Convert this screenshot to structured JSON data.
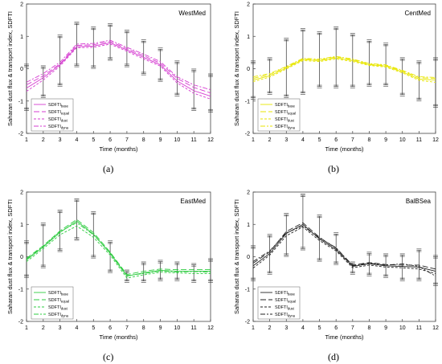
{
  "figure": {
    "captions": [
      "(a)",
      "(b)",
      "(c)",
      "(d)"
    ]
  },
  "chart_data": [
    {
      "type": "line",
      "title": "WestMed",
      "xlabel": "Time (months)",
      "ylabel": "Saharan dust flux & transport index, SDFTI",
      "xlim": [
        1,
        12
      ],
      "ylim": [
        -2,
        2
      ],
      "x": [
        1,
        2,
        3,
        4,
        5,
        6,
        7,
        8,
        9,
        10,
        11,
        12
      ],
      "x_ticks": [
        "1",
        "2",
        "3",
        "4",
        "5",
        "6",
        "7",
        "8",
        "9",
        "10",
        "11",
        "12"
      ],
      "y_ticks": [
        "-2",
        "-1",
        "0",
        "1",
        "2"
      ],
      "legend_position": "lower-left",
      "color": "#d63cd1",
      "series": [
        {
          "name": "SDFTIbase",
          "label_main": "SDFTI",
          "label_sub": "base",
          "dash": "",
          "values": [
            -0.6,
            -0.28,
            0.12,
            0.68,
            0.7,
            0.8,
            0.58,
            0.35,
            0.12,
            -0.38,
            -0.68,
            -0.85
          ]
        },
        {
          "name": "SDFTIequal",
          "label_main": "SDFTI",
          "label_sub": "equal",
          "dash": "7,3",
          "values": [
            -0.5,
            -0.22,
            0.15,
            0.72,
            0.74,
            0.84,
            0.62,
            0.4,
            0.17,
            -0.3,
            -0.58,
            -0.75
          ]
        },
        {
          "name": "SDFTIdust",
          "label_main": "SDFTI",
          "label_sub": "dust",
          "dash": "3,2",
          "values": [
            -0.7,
            -0.35,
            0.08,
            0.65,
            0.66,
            0.76,
            0.54,
            0.3,
            0.08,
            -0.44,
            -0.76,
            -0.94
          ]
        },
        {
          "name": "SDFTIdyna",
          "label_main": "SDFTI",
          "label_sub": "dyna",
          "dash": "6,2,2,2",
          "values": [
            -0.42,
            -0.15,
            0.2,
            0.76,
            0.78,
            0.88,
            0.66,
            0.45,
            0.22,
            -0.25,
            -0.5,
            -0.65
          ]
        }
      ],
      "error_bars": [
        {
          "x": 1,
          "low": -1.25,
          "high": 0.1
        },
        {
          "x": 2,
          "low": -0.85,
          "high": 0.05
        },
        {
          "x": 3,
          "low": -0.5,
          "high": 1.0
        },
        {
          "x": 4,
          "low": 0.1,
          "high": 1.4
        },
        {
          "x": 5,
          "low": 0.05,
          "high": 1.25
        },
        {
          "x": 6,
          "low": 0.3,
          "high": 1.35
        },
        {
          "x": 7,
          "low": 0.1,
          "high": 1.15
        },
        {
          "x": 8,
          "low": -0.15,
          "high": 0.85
        },
        {
          "x": 9,
          "low": -0.35,
          "high": 0.6
        },
        {
          "x": 10,
          "low": -0.8,
          "high": 0.2
        },
        {
          "x": 11,
          "low": -1.25,
          "high": -0.05
        },
        {
          "x": 12,
          "low": -1.3,
          "high": -0.2
        }
      ]
    },
    {
      "type": "line",
      "title": "CentMed",
      "xlabel": "Time (months)",
      "ylabel": "Saharan dust flux & transport index, SDFTI",
      "xlim": [
        1,
        12
      ],
      "ylim": [
        -2,
        2
      ],
      "x": [
        1,
        2,
        3,
        4,
        5,
        6,
        7,
        8,
        9,
        10,
        11,
        12
      ],
      "x_ticks": [
        "1",
        "2",
        "3",
        "4",
        "5",
        "6",
        "7",
        "8",
        "9",
        "10",
        "11",
        "12"
      ],
      "y_ticks": [
        "-2",
        "-1",
        "0",
        "1",
        "2"
      ],
      "legend_position": "lower-left",
      "color": "#e8e600",
      "series": [
        {
          "name": "SDFTIbase",
          "label_main": "SDFTI",
          "label_sub": "base",
          "dash": "",
          "values": [
            -0.35,
            -0.22,
            0.02,
            0.28,
            0.25,
            0.33,
            0.25,
            0.12,
            0.08,
            -0.1,
            -0.32,
            -0.35
          ]
        },
        {
          "name": "SDFTIequal",
          "label_main": "SDFTI",
          "label_sub": "equal",
          "dash": "7,3",
          "values": [
            -0.3,
            -0.18,
            0.05,
            0.3,
            0.27,
            0.36,
            0.28,
            0.14,
            0.1,
            -0.07,
            -0.28,
            -0.3
          ]
        },
        {
          "name": "SDFTIdust",
          "label_main": "SDFTI",
          "label_sub": "dust",
          "dash": "3,2",
          "values": [
            -0.4,
            -0.26,
            -0.01,
            0.25,
            0.22,
            0.3,
            0.22,
            0.1,
            0.05,
            -0.13,
            -0.36,
            -0.42
          ]
        },
        {
          "name": "SDFTIdyna",
          "label_main": "SDFTI",
          "label_sub": "dyna",
          "dash": "6,2,2,2",
          "values": [
            -0.25,
            -0.15,
            0.07,
            0.32,
            0.3,
            0.38,
            0.3,
            0.16,
            0.12,
            -0.05,
            -0.25,
            -0.27
          ]
        }
      ],
      "error_bars": [
        {
          "x": 1,
          "low": -0.9,
          "high": 0.2
        },
        {
          "x": 2,
          "low": -0.75,
          "high": 0.3
        },
        {
          "x": 3,
          "low": -0.85,
          "high": 0.9
        },
        {
          "x": 4,
          "low": -0.75,
          "high": 1.2
        },
        {
          "x": 5,
          "low": -0.55,
          "high": 1.1
        },
        {
          "x": 6,
          "low": -0.55,
          "high": 1.25
        },
        {
          "x": 7,
          "low": -0.55,
          "high": 1.05
        },
        {
          "x": 8,
          "low": -0.5,
          "high": 0.85
        },
        {
          "x": 9,
          "low": -0.5,
          "high": 0.75
        },
        {
          "x": 10,
          "low": -0.8,
          "high": 0.3
        },
        {
          "x": 11,
          "low": -0.95,
          "high": 0.2
        },
        {
          "x": 12,
          "low": -1.15,
          "high": 0.3
        }
      ]
    },
    {
      "type": "line",
      "title": "EastMed",
      "xlabel": "Time (months)",
      "ylabel": "Saharan dust flux & transport index, SDFTI",
      "xlim": [
        1,
        12
      ],
      "ylim": [
        -2,
        2
      ],
      "x": [
        1,
        2,
        3,
        4,
        5,
        6,
        7,
        8,
        9,
        10,
        11,
        12
      ],
      "x_ticks": [
        "1",
        "2",
        "3",
        "4",
        "5",
        "6",
        "7",
        "8",
        "9",
        "10",
        "11",
        "12"
      ],
      "y_ticks": [
        "-2",
        "-1",
        "0",
        "1",
        "2"
      ],
      "legend_position": "lower-left",
      "color": "#2ecc40",
      "series": [
        {
          "name": "SDFTIbase",
          "label_main": "SDFTI",
          "label_sub": "base",
          "dash": "",
          "values": [
            -0.1,
            0.3,
            0.75,
            1.1,
            0.7,
            0.1,
            -0.6,
            -0.5,
            -0.42,
            -0.45,
            -0.45,
            -0.45
          ]
        },
        {
          "name": "SDFTIequal",
          "label_main": "SDFTI",
          "label_sub": "equal",
          "dash": "7,3",
          "values": [
            -0.05,
            0.34,
            0.8,
            1.15,
            0.75,
            0.14,
            -0.55,
            -0.45,
            -0.38,
            -0.4,
            -0.4,
            -0.4
          ]
        },
        {
          "name": "SDFTIdust",
          "label_main": "SDFTI",
          "label_sub": "dust",
          "dash": "3,2",
          "values": [
            -0.15,
            0.25,
            0.68,
            0.95,
            0.6,
            0.05,
            -0.66,
            -0.56,
            -0.48,
            -0.5,
            -0.52,
            -0.52
          ]
        },
        {
          "name": "SDFTIdyna",
          "label_main": "SDFTI",
          "label_sub": "dyna",
          "dash": "6,2,2,2",
          "values": [
            -0.08,
            0.32,
            0.78,
            1.05,
            0.68,
            0.12,
            -0.58,
            -0.52,
            -0.44,
            -0.47,
            -0.46,
            -0.48
          ]
        }
      ],
      "error_bars": [
        {
          "x": 1,
          "low": -0.6,
          "high": 0.45
        },
        {
          "x": 2,
          "low": -0.3,
          "high": 1.0
        },
        {
          "x": 3,
          "low": 0.2,
          "high": 1.4
        },
        {
          "x": 4,
          "low": 0.55,
          "high": 1.75
        },
        {
          "x": 5,
          "low": 0.0,
          "high": 1.35
        },
        {
          "x": 6,
          "low": -0.45,
          "high": 0.45
        },
        {
          "x": 7,
          "low": -0.75,
          "high": -0.45
        },
        {
          "x": 8,
          "low": -0.75,
          "high": -0.2
        },
        {
          "x": 9,
          "low": -0.7,
          "high": -0.15
        },
        {
          "x": 10,
          "low": -0.7,
          "high": -0.2
        },
        {
          "x": 11,
          "low": -0.75,
          "high": -0.25
        },
        {
          "x": 12,
          "low": -0.75,
          "high": -0.1
        }
      ]
    },
    {
      "type": "line",
      "title": "BalBSea",
      "xlabel": "Time (months)",
      "ylabel": "Saharan dust flux & transport index, SDFTI",
      "xlim": [
        1,
        12
      ],
      "ylim": [
        -2,
        2
      ],
      "x": [
        1,
        2,
        3,
        4,
        5,
        6,
        7,
        8,
        9,
        10,
        11,
        12
      ],
      "x_ticks": [
        "1",
        "2",
        "3",
        "4",
        "5",
        "6",
        "7",
        "8",
        "9",
        "10",
        "11",
        "12"
      ],
      "y_ticks": [
        "-2",
        "-1",
        "0",
        "1",
        "2"
      ],
      "legend_position": "lower-left",
      "color": "#222222",
      "series": [
        {
          "name": "SDFTIbase",
          "label_main": "SDFTI",
          "label_sub": "base",
          "dash": "",
          "values": [
            -0.28,
            0.1,
            0.72,
            1.0,
            0.55,
            0.22,
            -0.3,
            -0.22,
            -0.28,
            -0.3,
            -0.32,
            -0.45
          ]
        },
        {
          "name": "SDFTIequal",
          "label_main": "SDFTI",
          "label_sub": "equal",
          "dash": "7,3",
          "values": [
            -0.2,
            0.15,
            0.78,
            1.05,
            0.6,
            0.26,
            -0.26,
            -0.18,
            -0.24,
            -0.26,
            -0.26,
            -0.38
          ]
        },
        {
          "name": "SDFTIdust",
          "label_main": "SDFTI",
          "label_sub": "dust",
          "dash": "3,2",
          "values": [
            -0.35,
            0.05,
            0.65,
            0.92,
            0.5,
            0.18,
            -0.34,
            -0.26,
            -0.32,
            -0.34,
            -0.38,
            -0.52
          ]
        },
        {
          "name": "SDFTIdyna",
          "label_main": "SDFTI",
          "label_sub": "dyna",
          "dash": "6,2,2,2",
          "values": [
            -0.15,
            0.18,
            0.74,
            0.95,
            0.58,
            0.28,
            -0.28,
            -0.2,
            -0.26,
            -0.22,
            -0.3,
            -0.6
          ]
        }
      ],
      "error_bars": [
        {
          "x": 1,
          "low": -0.7,
          "high": 0.3
        },
        {
          "x": 2,
          "low": -0.5,
          "high": 0.65
        },
        {
          "x": 3,
          "low": 0.05,
          "high": 1.3
        },
        {
          "x": 4,
          "low": 0.25,
          "high": 1.9
        },
        {
          "x": 5,
          "low": -0.1,
          "high": 1.25
        },
        {
          "x": 6,
          "low": -0.2,
          "high": 0.7
        },
        {
          "x": 7,
          "low": -0.5,
          "high": -0.2
        },
        {
          "x": 8,
          "low": -0.55,
          "high": 0.1
        },
        {
          "x": 9,
          "low": -0.6,
          "high": 0.05
        },
        {
          "x": 10,
          "low": -0.7,
          "high": 0.05
        },
        {
          "x": 11,
          "low": -0.7,
          "high": 0.2
        },
        {
          "x": 12,
          "low": -0.85,
          "high": 0.0
        }
      ]
    }
  ]
}
